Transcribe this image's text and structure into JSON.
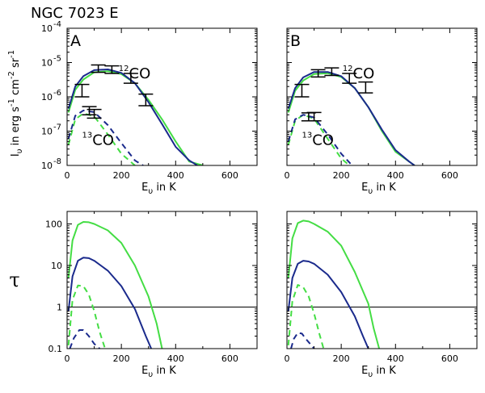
{
  "figure_title": "NGC 7023 E",
  "colors": {
    "model_a": "#22aa22",
    "model_b": "#1a2a8c",
    "model_a_bright": "#44dd44",
    "frame": "#000000"
  },
  "chart_data": [
    {
      "id": "top-left",
      "panel_label": "A",
      "type": "line",
      "ylabel": "I_υ in erg s^-1 cm^-2 sr^-1",
      "xlabel": "E_υ in K",
      "xlim": [
        0,
        700
      ],
      "ylim": [
        1e-08,
        0.0001
      ],
      "yscale": "log",
      "xticks": [
        0,
        200,
        400,
        600
      ],
      "yticks": [
        {
          "v": 1e-08,
          "m": "10",
          "e": "-8"
        },
        {
          "v": 1e-07,
          "m": "10",
          "e": "-7"
        },
        {
          "v": 1e-06,
          "m": "10",
          "e": "-6"
        },
        {
          "v": 1e-05,
          "m": "10",
          "e": "-5"
        },
        {
          "v": 0.0001,
          "m": "10",
          "e": "-4"
        }
      ],
      "annotations": [
        {
          "text": "CO",
          "sup": "12",
          "x": 190,
          "y": 3.5e-06
        },
        {
          "text": "CO",
          "sup": "13",
          "x": 55,
          "y": 4e-08
        }
      ],
      "series": [
        {
          "name": "12CO model 1",
          "color": "#44dd44",
          "dash": false,
          "x": [
            5,
            30,
            60,
            100,
            150,
            200,
            250,
            300,
            350,
            400,
            450,
            500
          ],
          "y": [
            3.5e-07,
            1.6e-06,
            3.2e-06,
            5.2e-06,
            5.6e-06,
            4.6e-06,
            2.5e-06,
            8.2e-07,
            2.2e-07,
            5e-08,
            1.3e-08,
            1e-08
          ]
        },
        {
          "name": "12CO model 2",
          "color": "#1a2a8c",
          "dash": false,
          "x": [
            5,
            30,
            60,
            100,
            150,
            200,
            250,
            300,
            350,
            400,
            450,
            480
          ],
          "y": [
            4.5e-07,
            2e-06,
            4e-06,
            6e-06,
            6.3e-06,
            5e-06,
            2.5e-06,
            7e-07,
            1.6e-07,
            3.5e-08,
            1.4e-08,
            1e-08
          ]
        },
        {
          "name": "13CO model 1",
          "color": "#44dd44",
          "dash": true,
          "x": [
            5,
            30,
            60,
            100,
            150,
            200,
            250
          ],
          "y": [
            4e-08,
            2.2e-07,
            3.3e-07,
            2.7e-07,
            8e-08,
            2.2e-08,
            1e-08
          ]
        },
        {
          "name": "13CO model 2",
          "color": "#1a2a8c",
          "dash": true,
          "x": [
            5,
            30,
            60,
            100,
            150,
            200,
            250,
            280
          ],
          "y": [
            6e-08,
            2.8e-07,
            4e-07,
            3.6e-07,
            1.5e-07,
            4.5e-08,
            1.4e-08,
            1e-08
          ]
        }
      ],
      "errorbars": [
        {
          "x": 55,
          "y": 1.5e-06,
          "lo": 1e-06,
          "hi": 2.3e-06
        },
        {
          "x": 115,
          "y": 6.8e-06,
          "lo": 5.2e-06,
          "hi": 8.5e-06
        },
        {
          "x": 165,
          "y": 6.3e-06,
          "lo": 4.8e-06,
          "hi": 8e-06
        },
        {
          "x": 235,
          "y": 3.5e-06,
          "lo": 2.5e-06,
          "hi": 4.8e-06
        },
        {
          "x": 290,
          "y": 8.5e-07,
          "lo": 5.5e-07,
          "hi": 1.2e-06
        },
        {
          "x": 82,
          "y": 4e-07,
          "lo": 3e-07,
          "hi": 5.2e-07
        },
        {
          "x": 100,
          "y": 3.3e-07,
          "lo": 2.4e-07,
          "hi": 4.3e-07
        }
      ]
    },
    {
      "id": "top-right",
      "panel_label": "B",
      "type": "line",
      "ylabel": "",
      "xlabel": "E_υ in K",
      "xlim": [
        0,
        700
      ],
      "ylim": [
        1e-08,
        0.0001
      ],
      "yscale": "log",
      "xticks": [
        0,
        200,
        400,
        600
      ],
      "yticks": [],
      "annotations": [
        {
          "text": "CO",
          "sup": "12",
          "x": 205,
          "y": 3.5e-06
        },
        {
          "text": "CO",
          "sup": "13",
          "x": 55,
          "y": 4e-08
        }
      ],
      "series": [
        {
          "name": "12CO model 1",
          "color": "#44dd44",
          "dash": false,
          "x": [
            5,
            30,
            60,
            100,
            150,
            200,
            250,
            300,
            350,
            400,
            450,
            470
          ],
          "y": [
            3.5e-07,
            1.5e-06,
            3e-06,
            4.6e-06,
            4.9e-06,
            3.8e-06,
            1.8e-06,
            5e-07,
            1e-07,
            2.5e-08,
            1.3e-08,
            1e-08
          ]
        },
        {
          "name": "12CO model 2",
          "color": "#1a2a8c",
          "dash": false,
          "x": [
            5,
            30,
            60,
            100,
            150,
            200,
            250,
            300,
            350,
            400,
            450,
            470
          ],
          "y": [
            4.5e-07,
            1.8e-06,
            3.7e-06,
            5.3e-06,
            5.3e-06,
            4e-06,
            1.8e-06,
            5e-07,
            1.1e-07,
            2.8e-08,
            1.3e-08,
            1e-08
          ]
        },
        {
          "name": "13CO model 1",
          "color": "#44dd44",
          "dash": true,
          "x": [
            5,
            30,
            60,
            100,
            150,
            200,
            230
          ],
          "y": [
            4e-08,
            2e-07,
            3e-07,
            2.3e-07,
            6e-08,
            1.6e-08,
            1e-08
          ]
        },
        {
          "name": "13CO model 2",
          "color": "#1a2a8c",
          "dash": true,
          "x": [
            5,
            30,
            60,
            100,
            150,
            200,
            240
          ],
          "y": [
            5e-08,
            2.2e-07,
            3e-07,
            2.5e-07,
            8e-08,
            2.2e-08,
            1e-08
          ]
        }
      ],
      "errorbars": [
        {
          "x": 55,
          "y": 1.5e-06,
          "lo": 1e-06,
          "hi": 2.3e-06
        },
        {
          "x": 115,
          "y": 4.9e-06,
          "lo": 3.8e-06,
          "hi": 6.2e-06
        },
        {
          "x": 165,
          "y": 5.6e-06,
          "lo": 4.2e-06,
          "hi": 7e-06
        },
        {
          "x": 230,
          "y": 3.5e-06,
          "lo": 2.5e-06,
          "hi": 4.8e-06
        },
        {
          "x": 290,
          "y": 1.9e-06,
          "lo": 1.3e-06,
          "hi": 2.7e-06
        },
        {
          "x": 80,
          "y": 2.6e-07,
          "lo": 2e-07,
          "hi": 3.4e-07
        },
        {
          "x": 100,
          "y": 2.6e-07,
          "lo": 2e-07,
          "hi": 3.5e-07
        }
      ]
    },
    {
      "id": "bottom-left",
      "panel_label": "",
      "type": "line",
      "ylabel": "τ",
      "xlabel": "E_υ in K",
      "xlim": [
        0,
        700
      ],
      "ylim": [
        0.1,
        200
      ],
      "yscale": "log",
      "xticks": [
        0,
        200,
        400,
        600
      ],
      "yticks": [
        {
          "v": 0.1,
          "m": "0.1",
          "e": ""
        },
        {
          "v": 1,
          "m": "1",
          "e": ""
        },
        {
          "v": 10,
          "m": "10",
          "e": ""
        },
        {
          "v": 100,
          "m": "100",
          "e": ""
        }
      ],
      "hline": 1,
      "annotations": [],
      "series": [
        {
          "name": "tau 12CO model 1",
          "color": "#44dd44",
          "dash": false,
          "x": [
            5,
            20,
            40,
            60,
            80,
            100,
            150,
            200,
            250,
            300,
            330,
            350
          ],
          "y": [
            5,
            40,
            95,
            112,
            110,
            100,
            70,
            35,
            10,
            1.8,
            0.4,
            0.1
          ]
        },
        {
          "name": "tau 12CO model 2",
          "color": "#1a2a8c",
          "dash": false,
          "x": [
            5,
            20,
            40,
            60,
            80,
            100,
            150,
            200,
            250,
            290,
            310
          ],
          "y": [
            0.8,
            5.5,
            13,
            15.5,
            15,
            13,
            7.5,
            3.2,
            0.9,
            0.2,
            0.1
          ]
        },
        {
          "name": "tau 13CO model 1",
          "color": "#44dd44",
          "dash": true,
          "x": [
            5,
            20,
            40,
            60,
            80,
            100,
            120,
            140
          ],
          "y": [
            0.12,
            1.5,
            3.3,
            3.2,
            2,
            0.8,
            0.25,
            0.1
          ]
        },
        {
          "name": "tau 13CO model 2",
          "color": "#1a2a8c",
          "dash": true,
          "x": [
            10,
            25,
            45,
            60,
            80,
            100,
            120
          ],
          "y": [
            0.1,
            0.18,
            0.28,
            0.28,
            0.2,
            0.13,
            0.1
          ]
        }
      ],
      "errorbars": []
    },
    {
      "id": "bottom-right",
      "panel_label": "",
      "type": "line",
      "ylabel": "",
      "xlabel": "E_υ in K",
      "xlim": [
        0,
        700
      ],
      "ylim": [
        0.1,
        200
      ],
      "yscale": "log",
      "xticks": [
        0,
        200,
        400,
        600
      ],
      "yticks": [],
      "hline": 1,
      "annotations": [],
      "series": [
        {
          "name": "tau 12CO model 1",
          "color": "#44dd44",
          "dash": false,
          "x": [
            5,
            20,
            40,
            60,
            80,
            100,
            150,
            200,
            250,
            300,
            320,
            340
          ],
          "y": [
            5,
            45,
            105,
            120,
            115,
            100,
            65,
            30,
            7,
            1.2,
            0.3,
            0.1
          ]
        },
        {
          "name": "tau 12CO model 2",
          "color": "#1a2a8c",
          "dash": false,
          "x": [
            5,
            20,
            40,
            60,
            80,
            100,
            150,
            200,
            250,
            280,
            300
          ],
          "y": [
            0.8,
            5,
            11,
            13,
            12.5,
            11,
            6,
            2.3,
            0.6,
            0.2,
            0.1
          ]
        },
        {
          "name": "tau 13CO model 1",
          "color": "#44dd44",
          "dash": true,
          "x": [
            5,
            20,
            40,
            60,
            80,
            100,
            120,
            135
          ],
          "y": [
            0.12,
            1.4,
            3.4,
            3,
            1.8,
            0.7,
            0.22,
            0.1
          ]
        },
        {
          "name": "tau 13CO model 2",
          "color": "#1a2a8c",
          "dash": true,
          "x": [
            15,
            25,
            40,
            55,
            70,
            90,
            100
          ],
          "y": [
            0.1,
            0.17,
            0.24,
            0.23,
            0.17,
            0.12,
            0.1
          ]
        }
      ],
      "errorbars": []
    }
  ]
}
